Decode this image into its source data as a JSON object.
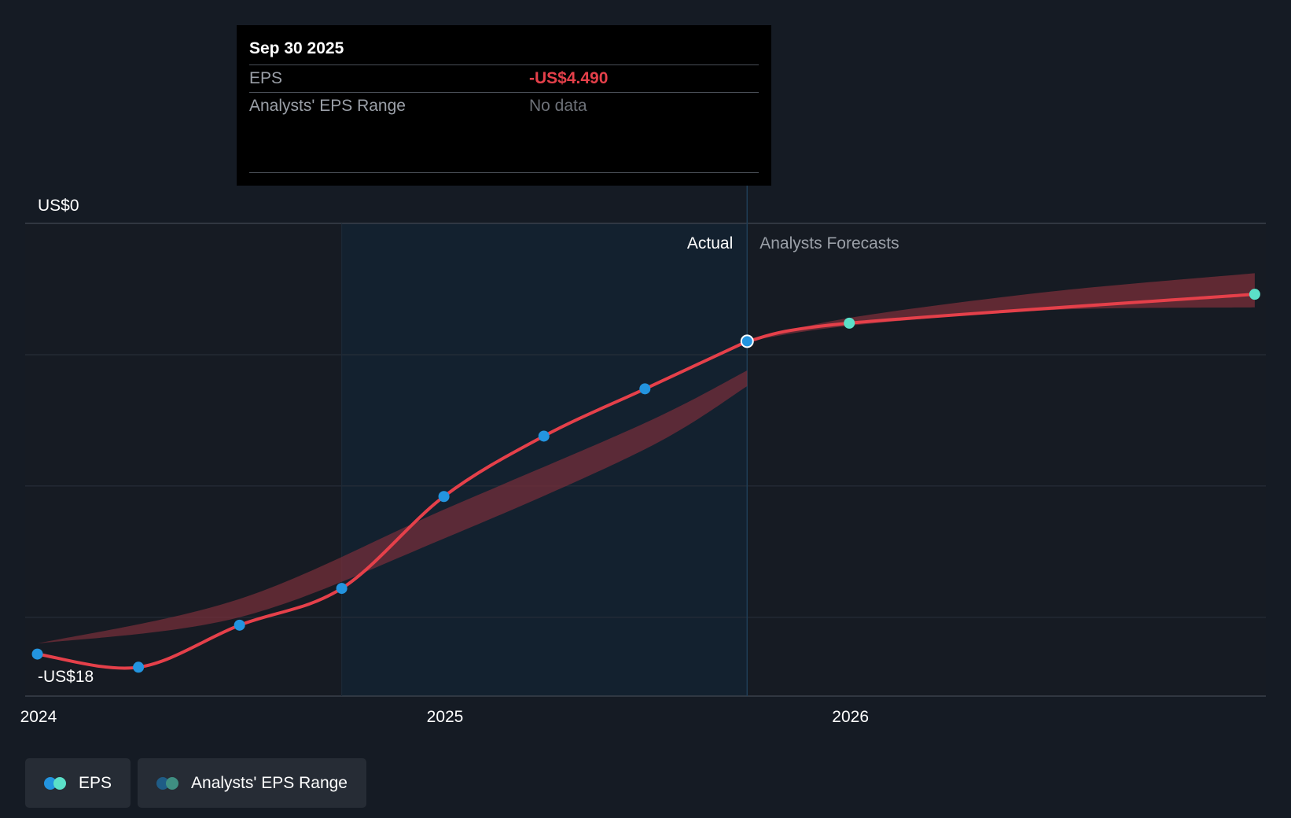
{
  "chart_data": {
    "type": "line",
    "y_axis": {
      "top_label": "US$0",
      "bottom_label": "-US$18",
      "range": [
        -18,
        0
      ]
    },
    "x_axis": {
      "ticks": [
        "2024",
        "2025",
        "2026"
      ],
      "range": [
        "2023-12-20",
        "2027-01-10"
      ]
    },
    "sections": {
      "actual_label": "Actual",
      "forecast_label": "Analysts Forecasts",
      "divider_date": "2025-09-30",
      "shaded_from": "2024-09-30"
    },
    "series": [
      {
        "name": "EPS",
        "kind": "actual",
        "points": [
          {
            "x": "2023-12-31",
            "y": -16.4
          },
          {
            "x": "2024-03-31",
            "y": -16.9
          },
          {
            "x": "2024-06-30",
            "y": -15.3
          },
          {
            "x": "2024-09-30",
            "y": -13.9
          },
          {
            "x": "2024-12-31",
            "y": -10.4
          },
          {
            "x": "2025-03-31",
            "y": -8.1
          },
          {
            "x": "2025-06-30",
            "y": -6.3
          },
          {
            "x": "2025-09-30",
            "y": -4.49
          }
        ]
      },
      {
        "name": "EPS",
        "kind": "forecast",
        "points": [
          {
            "x": "2025-09-30",
            "y": -4.49
          },
          {
            "x": "2025-12-31",
            "y": -3.8
          },
          {
            "x": "2026-12-31",
            "y": -2.7
          }
        ]
      },
      {
        "name": "Analysts' EPS Range",
        "kind": "historical-band",
        "points": [
          {
            "x": "2023-12-31",
            "low": -16.0,
            "high": -16.0
          },
          {
            "x": "2024-06-30",
            "low": -15.0,
            "high": -14.3
          },
          {
            "x": "2024-12-31",
            "low": -12.0,
            "high": -10.9
          },
          {
            "x": "2025-06-30",
            "low": -8.6,
            "high": -7.6
          },
          {
            "x": "2025-09-30",
            "low": -6.2,
            "high": -5.6
          }
        ]
      },
      {
        "name": "Analysts' EPS Range",
        "kind": "forecast-band",
        "points": [
          {
            "x": "2025-09-30",
            "low": -4.49,
            "high": -4.49
          },
          {
            "x": "2025-12-31",
            "low": -3.9,
            "high": -3.6
          },
          {
            "x": "2026-06-30",
            "low": -3.3,
            "high": -2.6
          },
          {
            "x": "2026-12-31",
            "low": -3.2,
            "high": -1.9
          }
        ]
      }
    ],
    "colors": {
      "line": "#e5404a",
      "band": "#7a2f3a",
      "actual_point": "#2394df",
      "forecast_point": "#5be0c8",
      "shade": "#13212f",
      "grid": "#2a313b",
      "divider": "#1f3d55"
    }
  },
  "tooltip": {
    "date": "Sep 30 2025",
    "rows": [
      {
        "label": "EPS",
        "value": "-US$4.490"
      },
      {
        "label": "Analysts' EPS Range",
        "value": "No data"
      }
    ]
  },
  "legend": [
    {
      "label": "EPS",
      "dot1": "#2394df",
      "dot2": "#5be0c8"
    },
    {
      "label": "Analysts' EPS Range",
      "dot1": "#1f5c86",
      "dot2": "#3f8f82"
    }
  ]
}
